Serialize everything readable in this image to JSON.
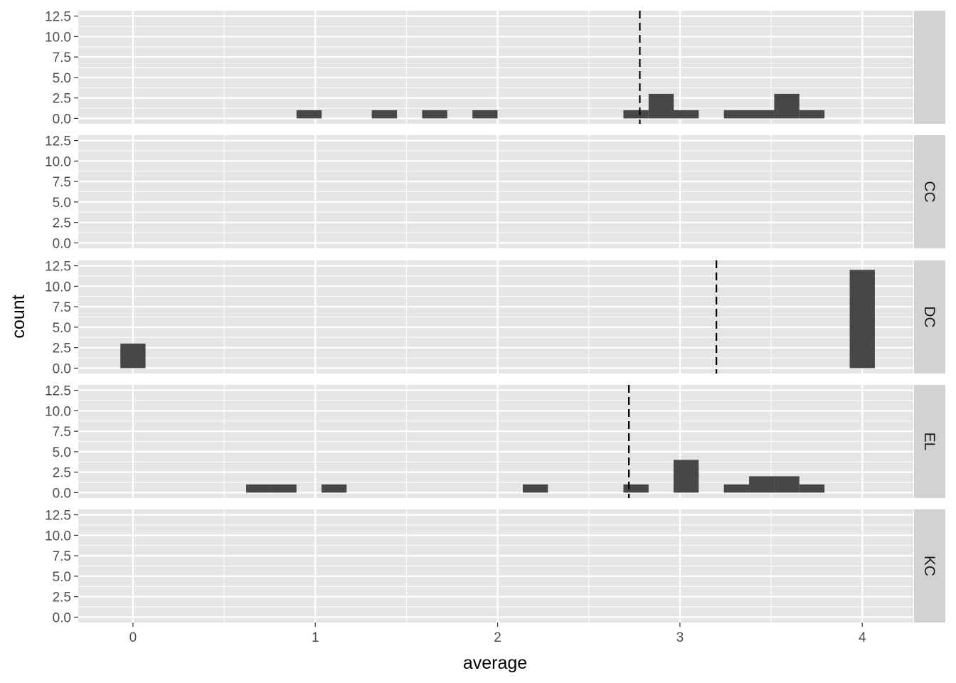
{
  "chart_data": {
    "type": "bar",
    "subtype": "faceted-histogram",
    "xlabel": "average",
    "ylabel": "count",
    "xlim": [
      -0.3,
      4.28
    ],
    "ylim": [
      0,
      12.5
    ],
    "x_ticks": [
      0,
      1,
      2,
      3,
      4
    ],
    "x_tick_labels": [
      "0",
      "1",
      "2",
      "3",
      "4"
    ],
    "y_ticks": [
      0,
      2.5,
      5,
      7.5,
      10,
      12.5
    ],
    "y_tick_labels": [
      "0.0",
      "2.5",
      "5.0",
      "7.5",
      "10.0",
      "12.5"
    ],
    "bin_width": 0.1379,
    "grid": true,
    "colors": {
      "bar": "#474747",
      "panel_background": "#e5e5e5",
      "grid": "#ffffff",
      "strip_background": "#d2d2d2",
      "mean_line": "#000000"
    },
    "facets": [
      {
        "label": "",
        "mean": 2.78,
        "bins": [
          {
            "x": 0.966,
            "count": 1
          },
          {
            "x": 1.379,
            "count": 1
          },
          {
            "x": 1.655,
            "count": 1
          },
          {
            "x": 1.931,
            "count": 1
          },
          {
            "x": 2.759,
            "count": 1
          },
          {
            "x": 2.897,
            "count": 3
          },
          {
            "x": 3.034,
            "count": 1
          },
          {
            "x": 3.31,
            "count": 1
          },
          {
            "x": 3.448,
            "count": 1
          },
          {
            "x": 3.586,
            "count": 3
          },
          {
            "x": 3.724,
            "count": 1
          }
        ]
      },
      {
        "label": "CC",
        "mean": null,
        "bins": []
      },
      {
        "label": "DC",
        "mean": 3.2,
        "bins": [
          {
            "x": 0.0,
            "count": 3
          },
          {
            "x": 4.0,
            "count": 12
          }
        ]
      },
      {
        "label": "EL",
        "mean": 2.72,
        "bins": [
          {
            "x": 0.69,
            "count": 1
          },
          {
            "x": 0.828,
            "count": 1
          },
          {
            "x": 1.103,
            "count": 1
          },
          {
            "x": 2.207,
            "count": 1
          },
          {
            "x": 2.759,
            "count": 1
          },
          {
            "x": 3.034,
            "count": 4
          },
          {
            "x": 3.31,
            "count": 1
          },
          {
            "x": 3.448,
            "count": 2
          },
          {
            "x": 3.586,
            "count": 2
          },
          {
            "x": 3.724,
            "count": 1
          }
        ]
      },
      {
        "label": "KC",
        "mean": null,
        "bins": []
      }
    ]
  }
}
